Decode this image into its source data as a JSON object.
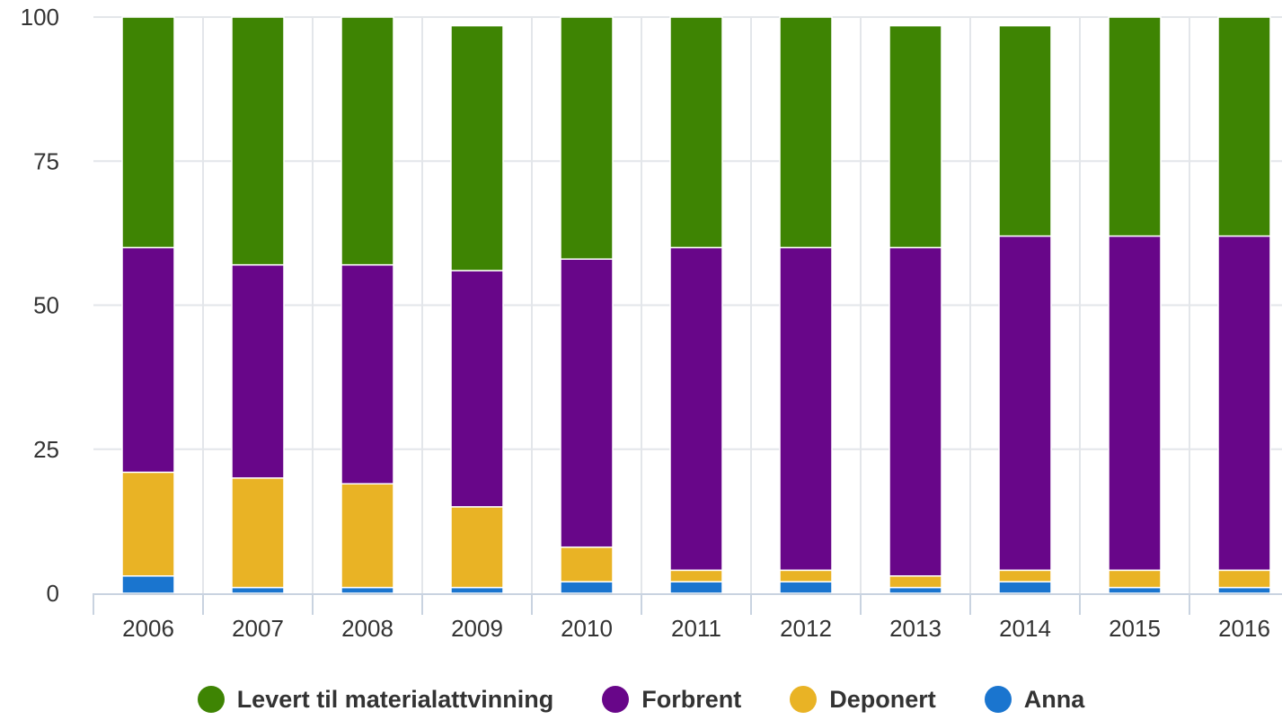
{
  "chart_data": {
    "type": "bar",
    "stacked": true,
    "categories": [
      "2006",
      "2007",
      "2008",
      "2009",
      "2010",
      "2011",
      "2012",
      "2013",
      "2014",
      "2015",
      "2016"
    ],
    "series": [
      {
        "name": "Anna",
        "color": "#1a75cf",
        "values": [
          3,
          1,
          1,
          1,
          2,
          2,
          2,
          1,
          2,
          1,
          1
        ]
      },
      {
        "name": "Deponert",
        "color": "#e9b325",
        "values": [
          18,
          19,
          18,
          14,
          6,
          2,
          2,
          2,
          2,
          3,
          3
        ]
      },
      {
        "name": "Forbrent",
        "color": "#680689",
        "values": [
          39,
          37,
          38,
          41,
          50,
          56,
          56,
          57,
          58,
          58,
          58
        ]
      },
      {
        "name": "Levert til materialattvinning",
        "color": "#3e8403",
        "values": [
          40,
          43,
          43,
          42.5,
          42,
          40,
          40,
          38.5,
          36.5,
          38,
          38
        ]
      }
    ],
    "legend_order": [
      "Levert til materialattvinning",
      "Forbrent",
      "Deponert",
      "Anna"
    ],
    "yticks": [
      "0",
      "25",
      "50",
      "75",
      "100"
    ],
    "ylim": [
      0,
      100
    ],
    "grid": true,
    "legend_position": "bottom"
  }
}
